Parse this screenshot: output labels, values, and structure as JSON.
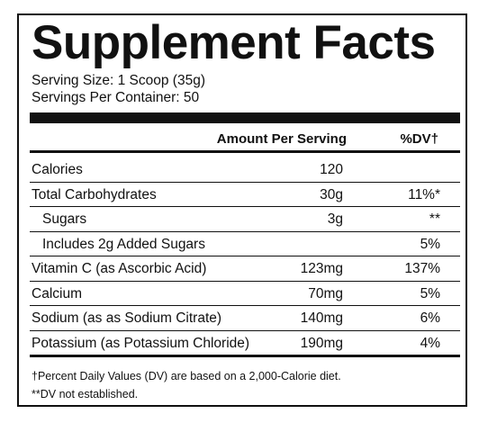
{
  "label": {
    "title": "Supplement Facts",
    "serving_size": "Serving Size: 1 Scoop (35g)",
    "servings_per_container": "Servings Per Container: 50",
    "header_amount": "Amount Per Serving",
    "header_dv": "%DV†",
    "rows": [
      {
        "name": "Calories",
        "amount": "120",
        "dv": ""
      },
      {
        "name": "Total Carbohydrates",
        "amount": "30g",
        "dv": "11%*"
      },
      {
        "name": "Sugars",
        "amount": "3g",
        "dv": "**"
      },
      {
        "name": "Includes 2g Added Sugars",
        "amount": "",
        "dv": "5%"
      },
      {
        "name": "Vitamin C (as Ascorbic Acid)",
        "amount": "123mg",
        "dv": "137%"
      },
      {
        "name": "Calcium",
        "amount": "70mg",
        "dv": "5%"
      },
      {
        "name": "Sodium (as as Sodium Citrate)",
        "amount": "140mg",
        "dv": "6%"
      },
      {
        "name": "Potassium (as Potassium Chloride)",
        "amount": "190mg",
        "dv": "4%"
      }
    ],
    "footnote_dv": "†Percent Daily Values (DV) are based on a 2,000-Calorie diet.",
    "footnote_not_established": "**DV not established."
  }
}
